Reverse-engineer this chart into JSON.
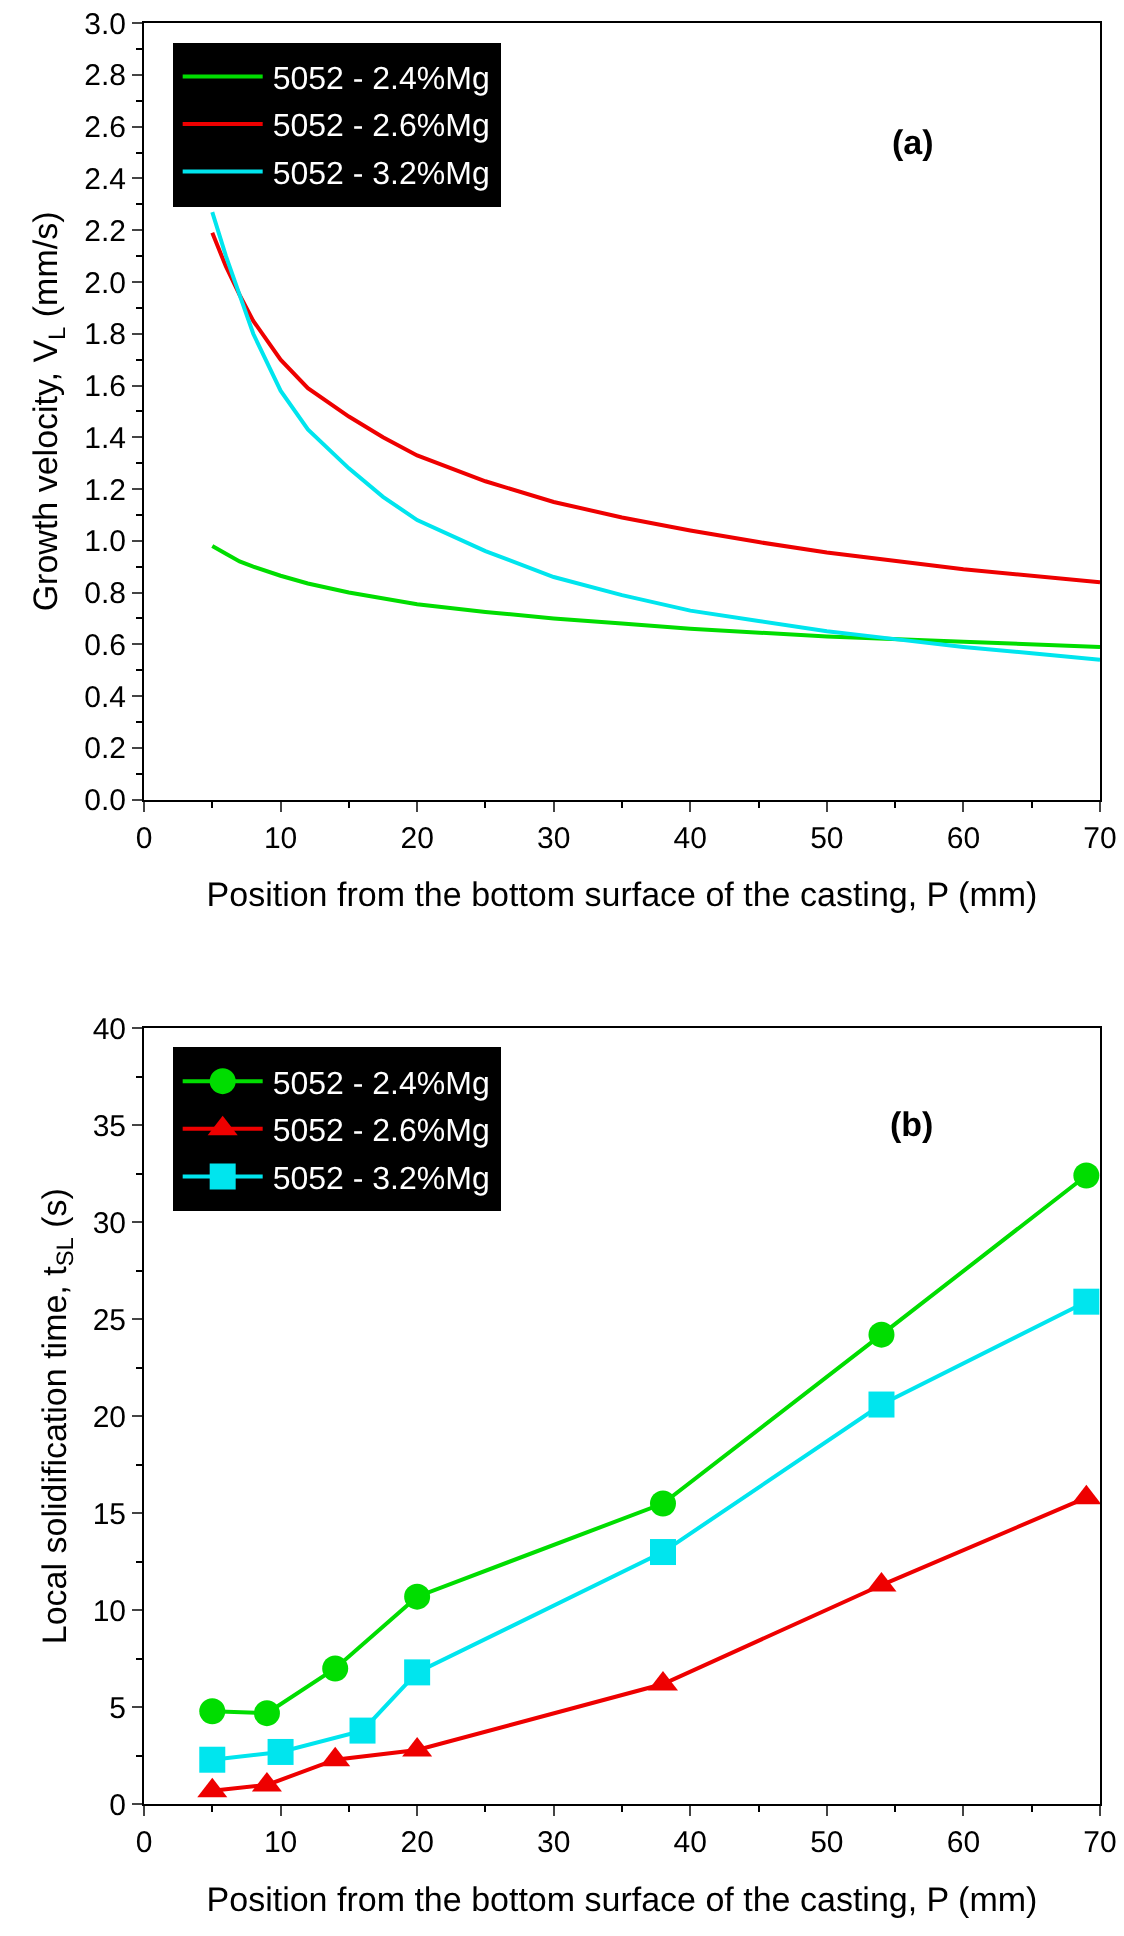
{
  "chart_data": [
    {
      "type": "line",
      "xlabel": "Position from the bottom surface of the casting, P (mm)",
      "ylabel": "Growth velocity, V$_{L}$ (mm/s)",
      "annotations": [
        "(a)"
      ],
      "xlim": [
        0,
        70
      ],
      "ylim": [
        0,
        3
      ],
      "xticks": [
        0,
        10,
        20,
        30,
        40,
        50,
        60,
        70
      ],
      "yticks": [
        {
          "value": 0,
          "label": "0.0"
        },
        0.2,
        0.4,
        0.6,
        0.8,
        {
          "value": 1,
          "label": "1.0"
        },
        1.2,
        1.4,
        1.6,
        1.8,
        {
          "value": 2,
          "label": "2.0"
        },
        2.2,
        2.4,
        2.6,
        2.8,
        {
          "value": 3,
          "label": "3.0"
        }
      ],
      "legend": "top left",
      "marker": "none",
      "line_style": "solid",
      "series": [
        {
          "name": "5052 - 2.4%Mg",
          "color": "#00dd00",
          "x": [
            5,
            6,
            7,
            8,
            10,
            12,
            15,
            20,
            25,
            30,
            35,
            40,
            50,
            60,
            70
          ],
          "values": [
            0.98,
            0.95,
            0.92,
            0.9,
            0.865,
            0.835,
            0.8,
            0.755,
            0.725,
            0.7,
            0.68,
            0.66,
            0.63,
            0.61,
            0.59
          ]
        },
        {
          "name": "5052 - 2.6%Mg",
          "color": "#ee0000",
          "x": [
            5,
            6,
            7,
            8,
            10,
            12,
            15,
            17.5,
            20,
            25,
            30,
            35,
            40,
            45,
            50,
            60,
            70
          ],
          "values": [
            2.19,
            2.06,
            1.95,
            1.85,
            1.7,
            1.59,
            1.48,
            1.4,
            1.33,
            1.23,
            1.15,
            1.09,
            1.04,
            0.995,
            0.955,
            0.89,
            0.84
          ]
        },
        {
          "name": "5052 - 3.2%Mg",
          "color": "#00e5ee",
          "x": [
            5,
            6,
            7,
            8,
            10,
            12,
            15,
            17.5,
            20,
            25,
            30,
            35,
            40,
            45,
            50,
            55,
            60,
            65,
            70
          ],
          "values": [
            2.27,
            2.1,
            1.95,
            1.8,
            1.58,
            1.43,
            1.28,
            1.17,
            1.08,
            0.96,
            0.86,
            0.79,
            0.73,
            0.69,
            0.65,
            0.62,
            0.59,
            0.565,
            0.54
          ]
        }
      ]
    },
    {
      "type": "line",
      "xlabel": "Position from the bottom surface of the casting, P (mm)",
      "ylabel": "Local solidification time, t$_{SL}$ (s)",
      "annotations": [
        "(b)"
      ],
      "xlim": [
        0,
        70
      ],
      "ylim": [
        0,
        40
      ],
      "xticks": [
        0,
        10,
        20,
        30,
        40,
        50,
        60,
        70
      ],
      "yticks": [
        0,
        5,
        10,
        15,
        20,
        25,
        30,
        35,
        40
      ],
      "legend": "top left",
      "line_style": "solid",
      "series": [
        {
          "name": "5052 - 2.4%Mg",
          "color": "#00dd00",
          "marker": "circle",
          "x": [
            5,
            9,
            14,
            20,
            38,
            54,
            69
          ],
          "values": [
            4.8,
            4.7,
            7.0,
            10.7,
            15.5,
            24.2,
            32.4
          ]
        },
        {
          "name": "5052 - 2.6%Mg",
          "color": "#ee0000",
          "marker": "triangle",
          "x": [
            5,
            9,
            14,
            20,
            38,
            54,
            69
          ],
          "values": [
            0.7,
            1.0,
            2.3,
            2.8,
            6.2,
            11.3,
            15.8
          ]
        },
        {
          "name": "5052 - 3.2%Mg",
          "color": "#00e5ee",
          "marker": "square",
          "x": [
            5,
            10,
            16,
            20,
            38,
            54,
            69
          ],
          "values": [
            2.3,
            2.7,
            3.8,
            6.8,
            13.0,
            20.6,
            25.9
          ]
        }
      ]
    }
  ]
}
